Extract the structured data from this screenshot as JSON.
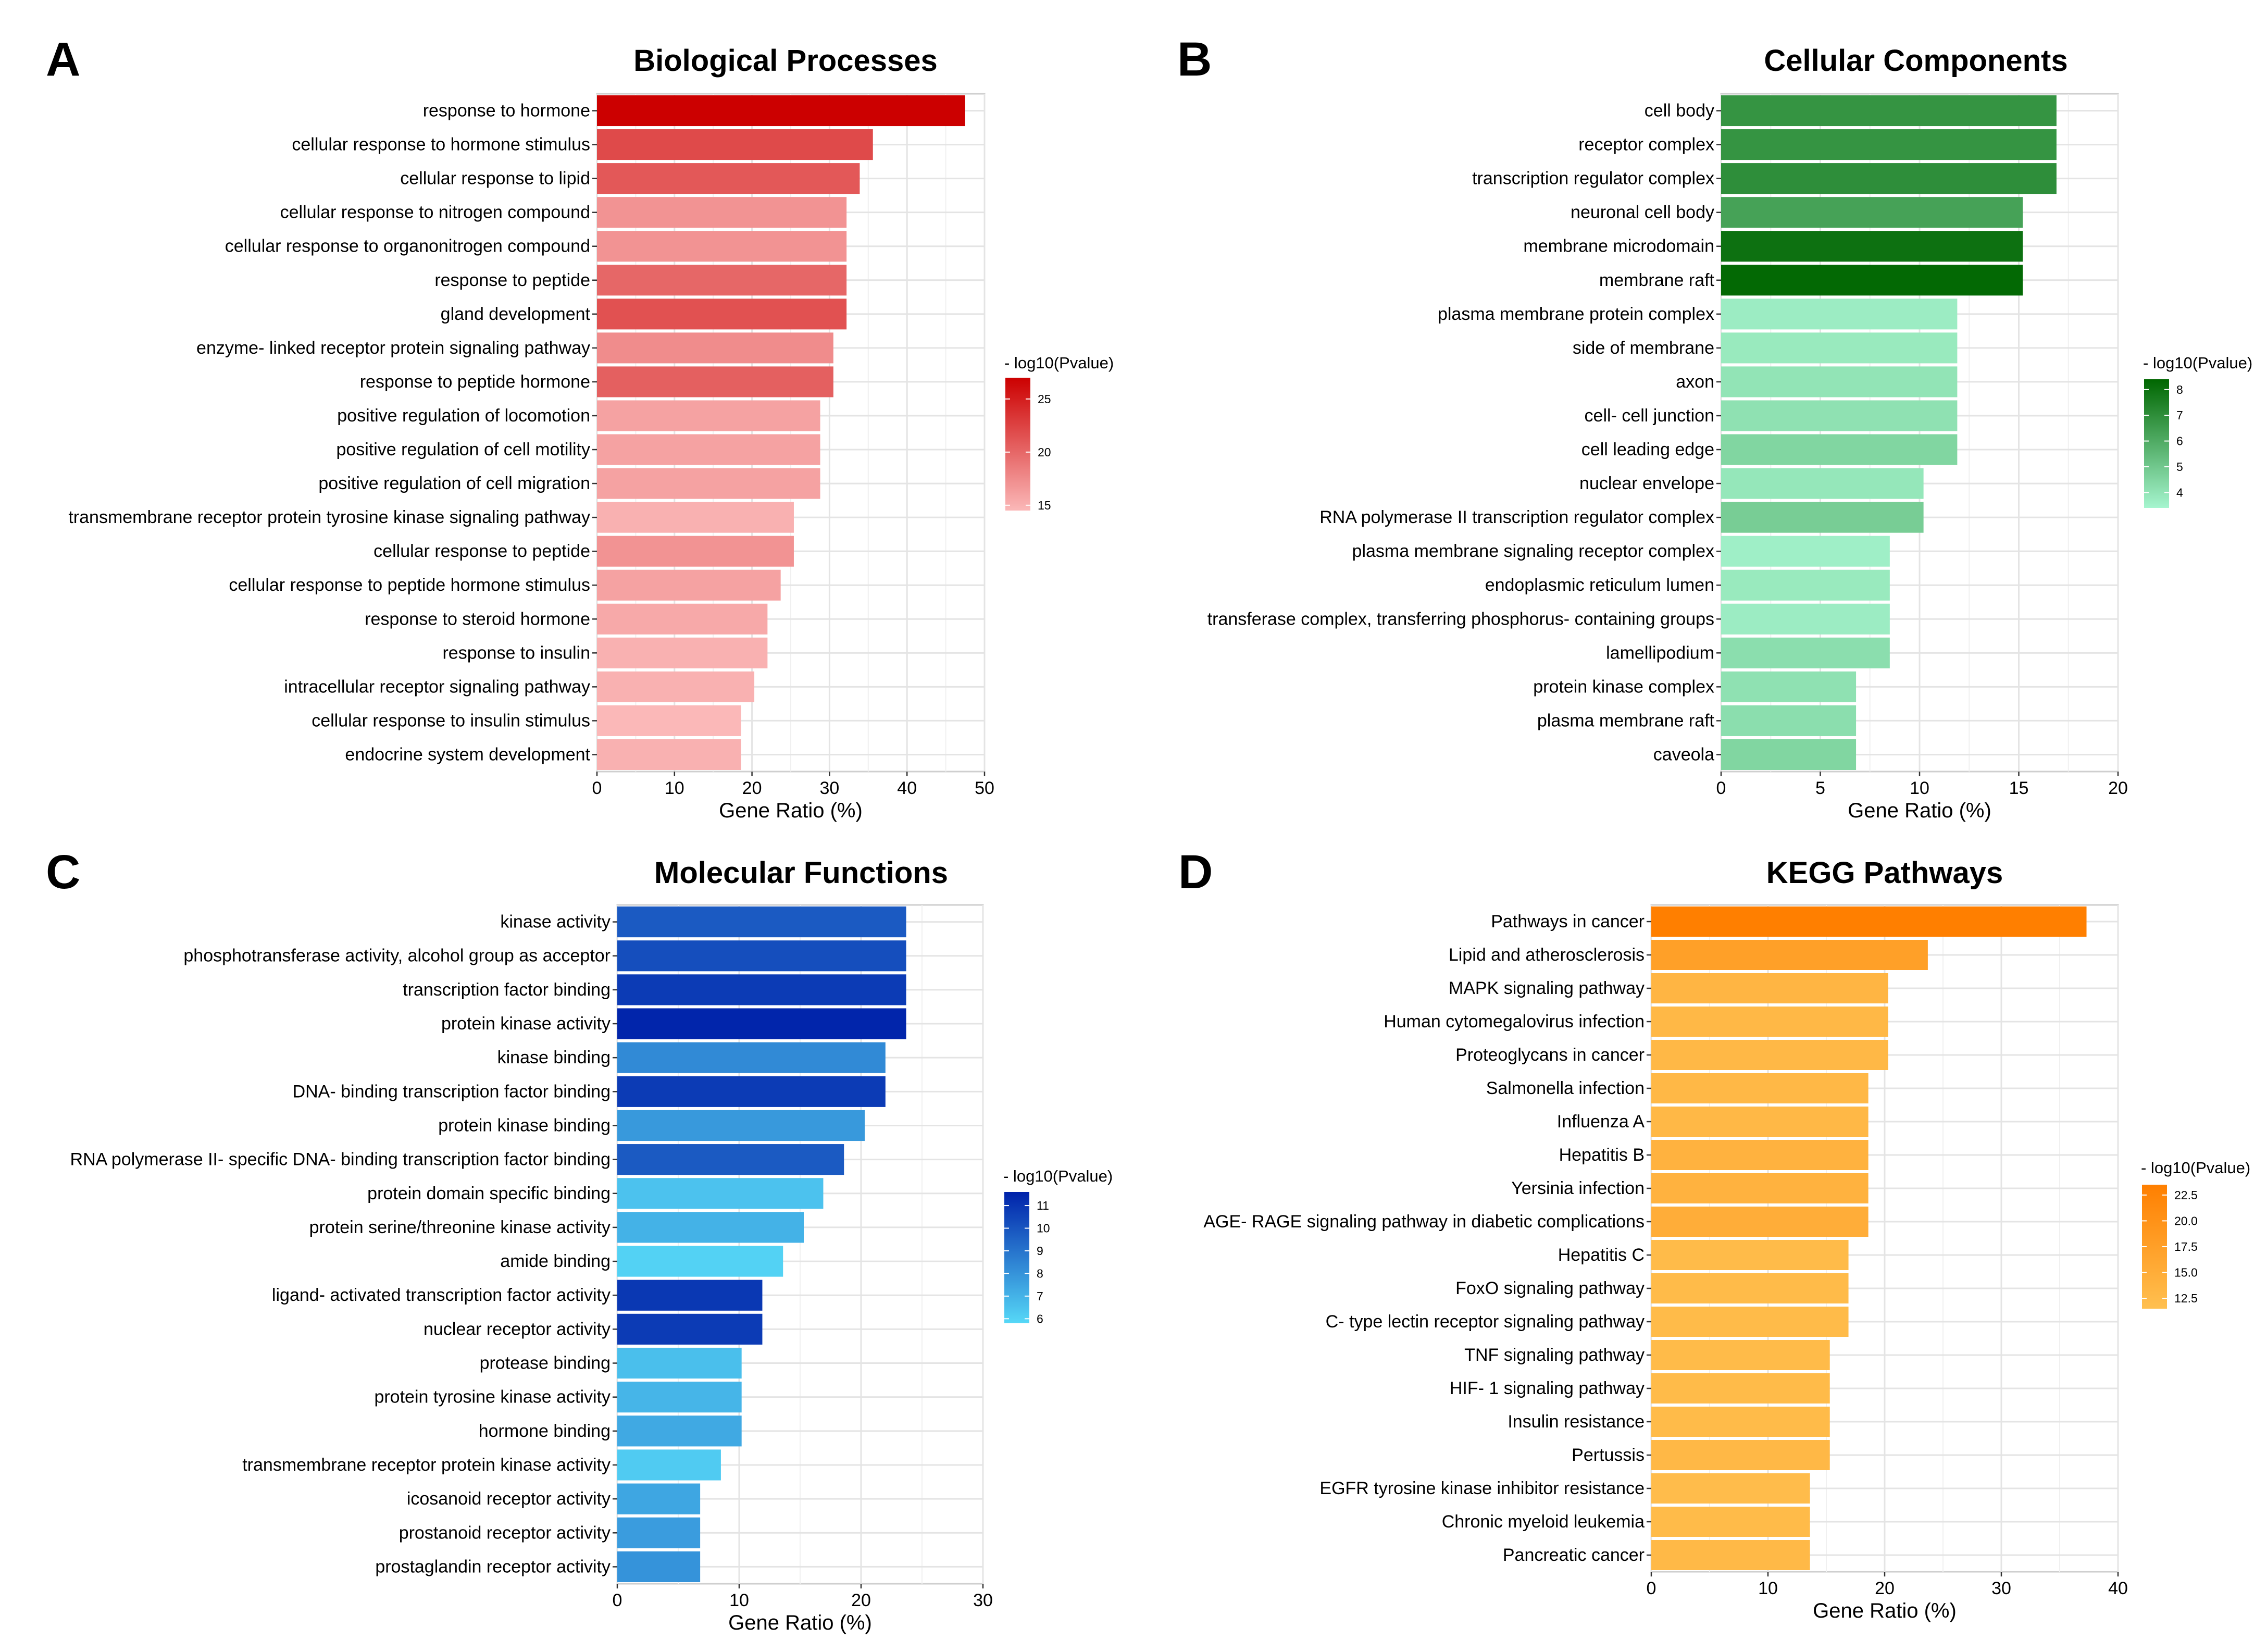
{
  "chart_data": [
    {
      "type": "bar",
      "orientation": "horizontal",
      "panel": "A",
      "title": "Biological Processes",
      "xlabel": "Gene Ratio (%)",
      "ylabel": "",
      "xlim": [
        0,
        50
      ],
      "xticks": [
        0,
        10,
        20,
        30,
        40,
        50
      ],
      "grid": true,
      "legend": {
        "title": "- log10(Pvalue)",
        "position": "right",
        "range": [
          14.5,
          27
        ],
        "ticks": [
          15,
          20,
          25
        ],
        "color_low": "#fbb8b8",
        "color_high": "#cc0000"
      },
      "categories": [
        "response to hormone",
        "cellular response to hormone stimulus",
        "cellular response to lipid",
        "cellular response to nitrogen compound",
        "cellular response to organonitrogen compound",
        "response to peptide",
        "gland development",
        "enzyme- linked receptor protein signaling pathway",
        "response to peptide hormone",
        "positive regulation of locomotion",
        "positive regulation of cell motility",
        "positive regulation of cell migration",
        "transmembrane receptor protein tyrosine kinase signaling pathway",
        "cellular response to peptide",
        "cellular response to peptide hormone stimulus",
        "response to steroid hormone",
        "response to insulin",
        "intracellular receptor signaling pathway",
        "cellular response to insulin stimulus",
        "endocrine system development"
      ],
      "values": [
        47.5,
        35.6,
        33.9,
        32.2,
        32.2,
        32.2,
        32.2,
        30.5,
        30.5,
        28.8,
        28.8,
        28.8,
        25.4,
        25.4,
        23.7,
        22.0,
        22.0,
        20.3,
        18.6,
        18.6
      ],
      "color_values": [
        27,
        22,
        21,
        17,
        17,
        20,
        21.5,
        17.5,
        20.5,
        16,
        16,
        16,
        15,
        17,
        16,
        15.5,
        15,
        15,
        14.5,
        15
      ]
    },
    {
      "type": "bar",
      "orientation": "horizontal",
      "panel": "B",
      "title": "Cellular Components",
      "xlabel": "Gene Ratio (%)",
      "ylabel": "",
      "xlim": [
        0,
        20
      ],
      "xticks": [
        0,
        5,
        10,
        15,
        20
      ],
      "grid": true,
      "legend": {
        "title": "- log10(Pvalue)",
        "position": "right",
        "range": [
          3.4,
          8.4
        ],
        "ticks": [
          4,
          5,
          6,
          7,
          8
        ],
        "color_low": "#a6f5cf",
        "color_high": "#006600"
      },
      "categories": [
        "cell body",
        "receptor complex",
        "transcription regulator complex",
        "neuronal cell body",
        "membrane microdomain",
        "membrane raft",
        "plasma membrane protein complex",
        "side of membrane",
        "axon",
        "cell- cell junction",
        "cell leading edge",
        "nuclear envelope",
        "RNA polymerase II transcription regulator complex",
        "plasma membrane signaling receptor complex",
        "endoplasmic reticulum lumen",
        "transferase complex, transferring phosphorus- containing groups",
        "lamellipodium",
        "protein kinase complex",
        "plasma membrane raft",
        "caveola"
      ],
      "values": [
        16.9,
        16.9,
        16.9,
        15.2,
        15.2,
        15.2,
        11.9,
        11.9,
        11.9,
        11.9,
        11.9,
        10.2,
        10.2,
        8.5,
        8.5,
        8.5,
        8.5,
        6.8,
        6.8,
        6.8
      ],
      "color_values": [
        6.8,
        6.8,
        7,
        6.3,
        8,
        8.3,
        3.7,
        3.8,
        4,
        4.1,
        4.5,
        3.9,
        4.8,
        3.6,
        3.8,
        3.7,
        4.2,
        4.1,
        4.2,
        4.5
      ]
    },
    {
      "type": "bar",
      "orientation": "horizontal",
      "panel": "C",
      "title": "Molecular Functions",
      "xlabel": "Gene Ratio (%)",
      "ylabel": "",
      "xlim": [
        0,
        30
      ],
      "xticks": [
        0,
        10,
        20,
        30
      ],
      "grid": true,
      "legend": {
        "title": "- log10(Pvalue)",
        "position": "right",
        "range": [
          5.8,
          11.6
        ],
        "ticks": [
          6,
          7,
          8,
          9,
          10,
          11
        ],
        "color_low": "#56d8f7",
        "color_high": "#0022aa"
      },
      "categories": [
        "kinase activity",
        "phosphotransferase activity, alcohol group as acceptor",
        "transcription factor binding",
        "protein kinase activity",
        "kinase binding",
        "DNA- binding transcription factor binding",
        "protein kinase binding",
        "RNA polymerase II- specific DNA- binding transcription factor binding",
        "protein domain specific binding",
        "protein serine/threonine kinase activity",
        "amide binding",
        "ligand- activated transcription factor activity",
        "nuclear receptor activity",
        "protease binding",
        "protein tyrosine kinase activity",
        "hormone binding",
        "transmembrane receptor protein kinase activity",
        "icosanoid receptor activity",
        "prostanoid receptor activity",
        "prostaglandin receptor activity"
      ],
      "values": [
        23.7,
        23.7,
        23.7,
        23.7,
        22.0,
        22.0,
        20.3,
        18.6,
        16.9,
        15.3,
        13.6,
        11.9,
        11.9,
        10.2,
        10.2,
        10.2,
        8.5,
        6.8,
        6.8,
        6.8
      ],
      "color_values": [
        9.8,
        10.2,
        10.8,
        11.5,
        8.3,
        10.8,
        7.8,
        9.8,
        6.5,
        7,
        6,
        10.9,
        10.8,
        6.6,
        6.9,
        7.3,
        6.2,
        7.4,
        7.7,
        8
      ]
    },
    {
      "type": "bar",
      "orientation": "horizontal",
      "panel": "D",
      "title": "KEGG Pathways",
      "xlabel": "Gene Ratio (%)",
      "ylabel": "",
      "xlim": [
        0,
        40
      ],
      "xticks": [
        0,
        10,
        20,
        30,
        40
      ],
      "grid": true,
      "legend": {
        "title": "- log10(Pvalue)",
        "position": "right",
        "range": [
          11.5,
          23.5
        ],
        "ticks": [
          12.5,
          15.0,
          17.5,
          20.0,
          22.5
        ],
        "color_low": "#ffc050",
        "color_high": "#ff7f00"
      },
      "legend_tick_labels": [
        "12.5",
        "15.0",
        "17.5",
        "20.0",
        "22.5"
      ],
      "categories": [
        "Pathways in cancer",
        "Lipid and atherosclerosis",
        "MAPK signaling pathway",
        "Human cytomegalovirus infection",
        "Proteoglycans in cancer",
        "Salmonella infection",
        "Influenza A",
        "Hepatitis B",
        "Yersinia infection",
        "AGE- RAGE signaling pathway in diabetic complications",
        "Hepatitis C",
        "FoxO signaling pathway",
        "C- type lectin receptor signaling pathway",
        "TNF signaling pathway",
        "HIF- 1 signaling pathway",
        "Insulin resistance",
        "Pertussis",
        "EGFR tyrosine kinase inhibitor resistance",
        "Chronic myeloid leukemia",
        "Pancreatic cancer"
      ],
      "values": [
        37.3,
        23.7,
        20.3,
        20.3,
        20.3,
        18.6,
        18.6,
        18.6,
        18.6,
        18.6,
        16.9,
        16.9,
        16.9,
        15.3,
        15.3,
        15.3,
        15.3,
        13.6,
        13.6,
        13.6
      ],
      "color_values": [
        23.5,
        17.5,
        13.5,
        13,
        13,
        13,
        13,
        14,
        14,
        15,
        12.5,
        12.5,
        12.5,
        12.5,
        12.5,
        12.5,
        13,
        12.3,
        12.5,
        12.8
      ]
    }
  ]
}
